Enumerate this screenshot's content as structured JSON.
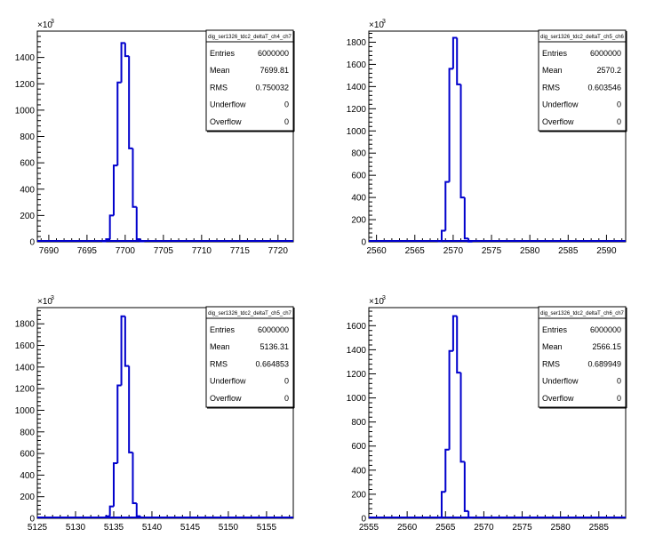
{
  "chart_data": [
    {
      "type": "histogram",
      "stats": {
        "title": "dig_ser1326_tdc2_deltaT_ch4_ch7",
        "rows": [
          {
            "label": "Entries",
            "value": "6000000"
          },
          {
            "label": "Mean",
            "value": "7699.81"
          },
          {
            "label": "RMS",
            "value": "0.750032"
          },
          {
            "label": "Underflow",
            "value": "0"
          },
          {
            "label": "Overflow",
            "value": "0"
          }
        ]
      },
      "xlim": [
        7688.5,
        7722.0
      ],
      "ylim": [
        0,
        1600
      ],
      "y_multiplier": "×10",
      "y_multiplier_exp": "3",
      "x_ticks": [
        7690,
        7695,
        7700,
        7705,
        7710,
        7715,
        7720
      ],
      "x_tick_labels": [
        "7690",
        "7695",
        "7700",
        "7705",
        "7710",
        "7715",
        "7720"
      ],
      "y_ticks": [
        0,
        200,
        400,
        600,
        800,
        1000,
        1200,
        1400
      ],
      "y_tick_labels": [
        "0",
        "200",
        "400",
        "600",
        "800",
        "1000",
        "1200",
        "1400"
      ],
      "bin_width": 0.5,
      "bins_x": [
        7697.0,
        7697.5,
        7698.0,
        7698.5,
        7699.0,
        7699.5,
        7700.0,
        7700.5,
        7701.0,
        7701.5,
        7702.0
      ],
      "values": [
        3,
        20,
        200,
        580,
        1210,
        1510,
        1410,
        710,
        265,
        20,
        3
      ],
      "color": "#0000cc"
    },
    {
      "type": "histogram",
      "stats": {
        "title": "dig_ser1326_tdc2_deltaT_ch5_ch6",
        "rows": [
          {
            "label": "Entries",
            "value": "6000000"
          },
          {
            "label": "Mean",
            "value": "2570.2"
          },
          {
            "label": "RMS",
            "value": "0.603546"
          },
          {
            "label": "Underflow",
            "value": "0"
          },
          {
            "label": "Overflow",
            "value": "0"
          }
        ]
      },
      "xlim": [
        2559.0,
        2592.5
      ],
      "ylim": [
        0,
        1900
      ],
      "y_multiplier": "×10",
      "y_multiplier_exp": "3",
      "x_ticks": [
        2560,
        2565,
        2570,
        2575,
        2580,
        2585,
        2590
      ],
      "x_tick_labels": [
        "2560",
        "2565",
        "2570",
        "2575",
        "2580",
        "2585",
        "2590"
      ],
      "y_ticks": [
        0,
        200,
        400,
        600,
        800,
        1000,
        1200,
        1400,
        1600,
        1800
      ],
      "y_tick_labels": [
        "0",
        "200",
        "400",
        "600",
        "800",
        "1000",
        "1200",
        "1400",
        "1600",
        "1800"
      ],
      "bin_width": 0.5,
      "bins_x": [
        2568.0,
        2568.5,
        2569.0,
        2569.5,
        2570.0,
        2570.5,
        2571.0,
        2571.5,
        2572.0
      ],
      "values": [
        5,
        100,
        540,
        1560,
        1840,
        1420,
        400,
        30,
        2
      ],
      "color": "#0000cc"
    },
    {
      "type": "histogram",
      "stats": {
        "title": "dig_ser1326_tdc2_deltaT_ch5_ch7",
        "rows": [
          {
            "label": "Entries",
            "value": "6000000"
          },
          {
            "label": "Mean",
            "value": "5136.31"
          },
          {
            "label": "RMS",
            "value": "0.664853"
          },
          {
            "label": "Underflow",
            "value": "0"
          },
          {
            "label": "Overflow",
            "value": "0"
          }
        ]
      },
      "xlim": [
        5125.0,
        5158.5
      ],
      "ylim": [
        0,
        1950
      ],
      "y_multiplier": "×10",
      "y_multiplier_exp": "3",
      "x_ticks": [
        5125,
        5130,
        5135,
        5140,
        5145,
        5150,
        5155
      ],
      "x_tick_labels": [
        "5125",
        "5130",
        "5135",
        "5140",
        "5145",
        "5150",
        "5155"
      ],
      "y_ticks": [
        0,
        200,
        400,
        600,
        800,
        1000,
        1200,
        1400,
        1600,
        1800
      ],
      "y_tick_labels": [
        "0",
        "200",
        "400",
        "600",
        "800",
        "1000",
        "1200",
        "1400",
        "1600",
        "1800"
      ],
      "bin_width": 0.5,
      "bins_x": [
        5134.0,
        5134.5,
        5135.0,
        5135.5,
        5136.0,
        5136.5,
        5137.0,
        5137.5,
        5138.0
      ],
      "values": [
        20,
        110,
        510,
        1230,
        1870,
        1410,
        610,
        140,
        20
      ],
      "color": "#0000cc"
    },
    {
      "type": "histogram",
      "stats": {
        "title": "dig_ser1326_tdc2_deltaT_ch6_ch7",
        "rows": [
          {
            "label": "Entries",
            "value": "6000000"
          },
          {
            "label": "Mean",
            "value": "2566.15"
          },
          {
            "label": "RMS",
            "value": "0.689949"
          },
          {
            "label": "Underflow",
            "value": "0"
          },
          {
            "label": "Overflow",
            "value": "0"
          }
        ]
      },
      "xlim": [
        2555.0,
        2588.5
      ],
      "ylim": [
        0,
        1750
      ],
      "y_multiplier": "×10",
      "y_multiplier_exp": "3",
      "x_ticks": [
        2555,
        2560,
        2565,
        2570,
        2575,
        2580,
        2585
      ],
      "x_tick_labels": [
        "2555",
        "2560",
        "2565",
        "2570",
        "2575",
        "2580",
        "2585"
      ],
      "y_ticks": [
        0,
        200,
        400,
        600,
        800,
        1000,
        1200,
        1400,
        1600
      ],
      "y_tick_labels": [
        "0",
        "200",
        "400",
        "600",
        "800",
        "1000",
        "1200",
        "1400",
        "1600"
      ],
      "bin_width": 0.5,
      "bins_x": [
        2564.0,
        2564.5,
        2565.0,
        2565.5,
        2566.0,
        2566.5,
        2567.0,
        2567.5,
        2568.0
      ],
      "values": [
        5,
        220,
        570,
        1390,
        1680,
        1210,
        470,
        60,
        5
      ],
      "color": "#0000cc"
    }
  ]
}
